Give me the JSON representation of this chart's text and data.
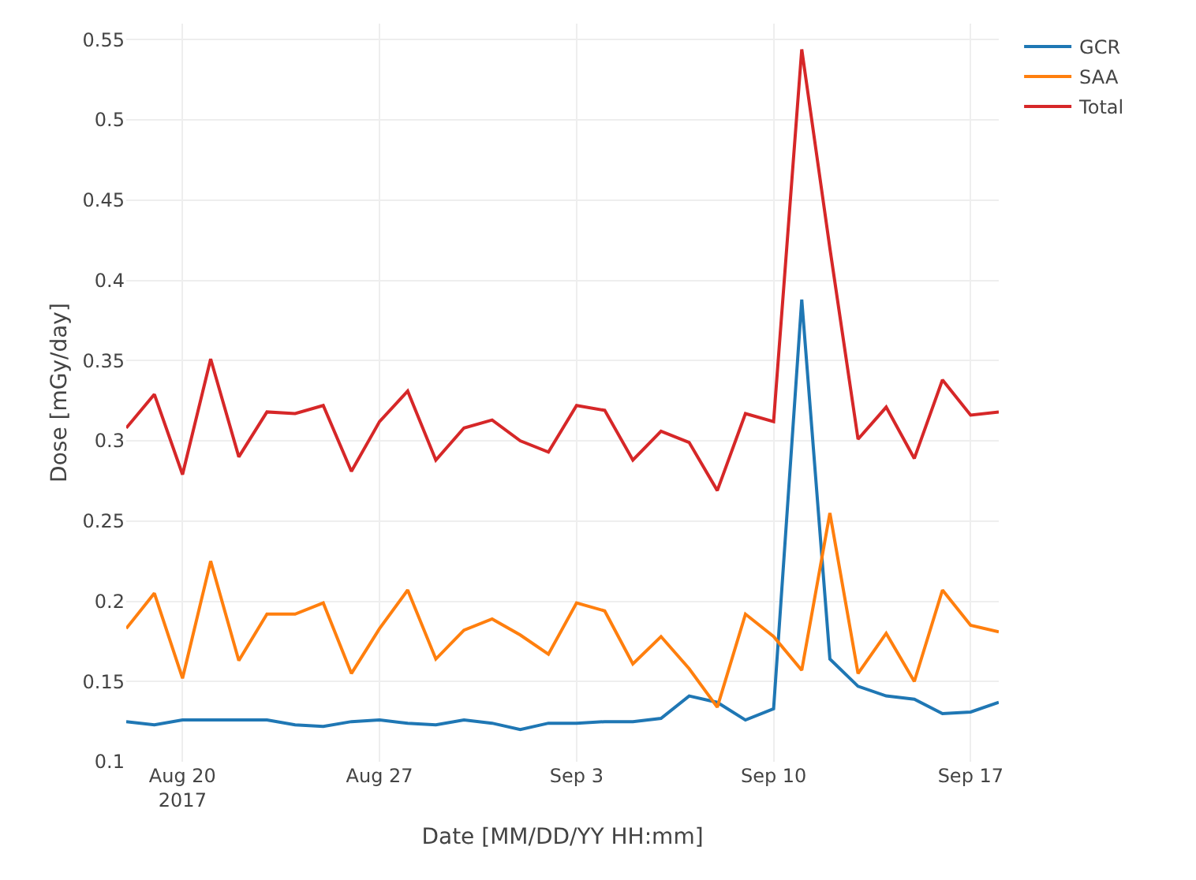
{
  "chart_data": {
    "type": "line",
    "xlabel": "Date [MM/DD/YY HH:mm]",
    "ylabel": "Dose [mGy/day]",
    "x": [
      "2017-08-18",
      "2017-08-19",
      "2017-08-20",
      "2017-08-21",
      "2017-08-22",
      "2017-08-23",
      "2017-08-24",
      "2017-08-25",
      "2017-08-26",
      "2017-08-27",
      "2017-08-28",
      "2017-08-29",
      "2017-08-30",
      "2017-08-31",
      "2017-09-01",
      "2017-09-02",
      "2017-09-03",
      "2017-09-04",
      "2017-09-05",
      "2017-09-06",
      "2017-09-07",
      "2017-09-08",
      "2017-09-09",
      "2017-09-10",
      "2017-09-11",
      "2017-09-12",
      "2017-09-13",
      "2017-09-14",
      "2017-09-15",
      "2017-09-16",
      "2017-09-17",
      "2017-09-18"
    ],
    "series": [
      {
        "name": "GCR",
        "color": "#1f77b4",
        "values": [
          0.125,
          0.123,
          0.126,
          0.126,
          0.126,
          0.126,
          0.123,
          0.122,
          0.125,
          0.126,
          0.124,
          0.123,
          0.126,
          0.124,
          0.12,
          0.124,
          0.124,
          0.125,
          0.125,
          0.127,
          0.141,
          0.137,
          0.126,
          0.133,
          0.388,
          0.164,
          0.147,
          0.141,
          0.139,
          0.13,
          0.131,
          0.137
        ]
      },
      {
        "name": "SAA",
        "color": "#ff7f0e",
        "values": [
          0.183,
          0.205,
          0.152,
          0.225,
          0.163,
          0.192,
          0.192,
          0.199,
          0.155,
          0.183,
          0.207,
          0.164,
          0.182,
          0.189,
          0.179,
          0.167,
          0.199,
          0.194,
          0.161,
          0.178,
          0.158,
          0.134,
          0.192,
          0.178,
          0.157,
          0.255,
          0.155,
          0.18,
          0.15,
          0.207,
          0.185,
          0.181
        ]
      },
      {
        "name": "Total",
        "color": "#d62728",
        "values": [
          0.308,
          0.329,
          0.279,
          0.351,
          0.29,
          0.318,
          0.317,
          0.322,
          0.281,
          0.312,
          0.331,
          0.288,
          0.308,
          0.313,
          0.3,
          0.293,
          0.322,
          0.319,
          0.288,
          0.306,
          0.299,
          0.269,
          0.317,
          0.312,
          0.544,
          0.42,
          0.301,
          0.321,
          0.289,
          0.338,
          0.316,
          0.318
        ]
      }
    ],
    "xlim": [
      "2017-08-18",
      "2017-09-18"
    ],
    "xticks": [
      {
        "value": "2017-08-20",
        "label": "Aug 20\n2017"
      },
      {
        "value": "2017-08-27",
        "label": "Aug 27"
      },
      {
        "value": "2017-09-03",
        "label": "Sep 3"
      },
      {
        "value": "2017-09-10",
        "label": "Sep 10"
      },
      {
        "value": "2017-09-17",
        "label": "Sep 17"
      }
    ],
    "ylim": [
      0.1,
      0.56
    ],
    "yticks": [
      0.1,
      0.15,
      0.2,
      0.25,
      0.3,
      0.35,
      0.4,
      0.45,
      0.5,
      0.55
    ],
    "grid": true,
    "legend": "top right",
    "line_style": "solid"
  }
}
